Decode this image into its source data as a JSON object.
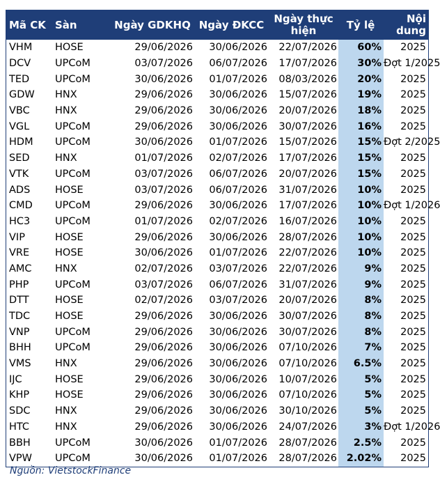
{
  "table": {
    "headers": [
      "Mã CK",
      "Sàn",
      "Ngày GDKHQ",
      "Ngày ĐKCC",
      "Ngày thực hiện",
      "Tỷ lệ",
      "Nội dung"
    ],
    "rows": [
      [
        "VHM",
        "HOSE",
        "29/06/2026",
        "30/06/2026",
        "22/07/2026",
        "60%",
        "2025"
      ],
      [
        "DCV",
        "UPCoM",
        "03/07/2026",
        "06/07/2026",
        "17/07/2026",
        "30%",
        "Đợt 1/2025"
      ],
      [
        "TED",
        "UPCoM",
        "30/06/2026",
        "01/07/2026",
        "08/03/2026",
        "20%",
        "2025"
      ],
      [
        "GDW",
        "HNX",
        "29/06/2026",
        "30/06/2026",
        "15/07/2026",
        "19%",
        "2025"
      ],
      [
        "VBC",
        "HNX",
        "29/06/2026",
        "30/06/2026",
        "20/07/2026",
        "18%",
        "2025"
      ],
      [
        "VGL",
        "UPCoM",
        "29/06/2026",
        "30/06/2026",
        "30/07/2026",
        "16%",
        "2025"
      ],
      [
        "HDM",
        "UPCoM",
        "30/06/2026",
        "01/07/2026",
        "15/07/2026",
        "15%",
        "Đợt 2/2025"
      ],
      [
        "SED",
        "HNX",
        "01/07/2026",
        "02/07/2026",
        "17/07/2026",
        "15%",
        "2025"
      ],
      [
        "VTK",
        "UPCoM",
        "03/07/2026",
        "06/07/2026",
        "20/07/2026",
        "15%",
        "2025"
      ],
      [
        "ADS",
        "HOSE",
        "03/07/2026",
        "06/07/2026",
        "31/07/2026",
        "10%",
        "2025"
      ],
      [
        "CMD",
        "UPCoM",
        "29/06/2026",
        "30/06/2026",
        "17/07/2026",
        "10%",
        "Đợt 1/2026"
      ],
      [
        "HC3",
        "UPCoM",
        "01/07/2026",
        "02/07/2026",
        "16/07/2026",
        "10%",
        "2025"
      ],
      [
        "VIP",
        "HOSE",
        "29/06/2026",
        "30/06/2026",
        "28/07/2026",
        "10%",
        "2025"
      ],
      [
        "VRE",
        "HOSE",
        "30/06/2026",
        "01/07/2026",
        "22/07/2026",
        "10%",
        "2025"
      ],
      [
        "AMC",
        "HNX",
        "02/07/2026",
        "03/07/2026",
        "22/07/2026",
        "9%",
        "2025"
      ],
      [
        "PHP",
        "UPCoM",
        "03/07/2026",
        "06/07/2026",
        "31/07/2026",
        "9%",
        "2025"
      ],
      [
        "DTT",
        "HOSE",
        "02/07/2026",
        "03/07/2026",
        "20/07/2026",
        "8%",
        "2025"
      ],
      [
        "TDC",
        "HOSE",
        "29/06/2026",
        "30/06/2026",
        "30/07/2026",
        "8%",
        "2025"
      ],
      [
        "VNP",
        "UPCoM",
        "29/06/2026",
        "30/06/2026",
        "30/07/2026",
        "8%",
        "2025"
      ],
      [
        "BHH",
        "UPCoM",
        "29/06/2026",
        "30/06/2026",
        "07/10/2026",
        "7%",
        "2025"
      ],
      [
        "VMS",
        "HNX",
        "29/06/2026",
        "30/06/2026",
        "07/10/2026",
        "6.5%",
        "2025"
      ],
      [
        "IJC",
        "HOSE",
        "29/06/2026",
        "30/06/2026",
        "10/07/2026",
        "5%",
        "2025"
      ],
      [
        "KHP",
        "HOSE",
        "29/06/2026",
        "30/06/2026",
        "07/10/2026",
        "5%",
        "2025"
      ],
      [
        "SDC",
        "HNX",
        "29/06/2026",
        "30/06/2026",
        "30/10/2026",
        "5%",
        "2025"
      ],
      [
        "HTC",
        "HNX",
        "29/06/2026",
        "30/06/2026",
        "24/07/2026",
        "3%",
        "Đợt 1/2026"
      ],
      [
        "BBH",
        "UPCoM",
        "30/06/2026",
        "01/07/2026",
        "28/07/2026",
        "2.5%",
        "2025"
      ],
      [
        "VPW",
        "UPCoM",
        "30/06/2026",
        "01/07/2026",
        "28/07/2026",
        "2.02%",
        "2025"
      ]
    ]
  },
  "source": "Nguồn: VietstockFinance",
  "colors": {
    "header_bg": "#1f3e78",
    "header_text": "#ffffff",
    "rate_highlight": "#bdd7ee"
  }
}
